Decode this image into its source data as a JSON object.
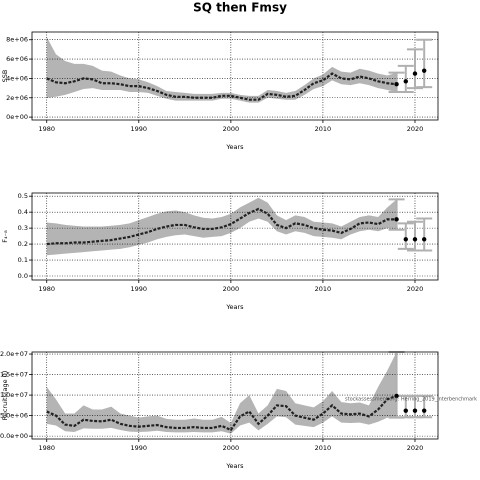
{
  "title": "SQ then Fmsy",
  "chart_data": [
    {
      "type": "line",
      "ylabel": "SSB",
      "xlabel": "Years",
      "color": "#000000",
      "band_color": "#b4b4b4",
      "error_color": "#b0b0b0",
      "grid": true,
      "xlim": [
        1978.4,
        2022.5
      ],
      "xticks": [
        1980,
        1990,
        2000,
        2010,
        2020
      ],
      "ylim": [
        -300000.0,
        8800000.0
      ],
      "yticks": [
        {
          "value": 0,
          "label": "0e+00"
        },
        {
          "value": 2000000.0,
          "label": "2e+06"
        },
        {
          "value": 4000000.0,
          "label": "4e+06"
        },
        {
          "value": 6000000.0,
          "label": "6e+06"
        },
        {
          "value": 8000000.0,
          "label": "8e+06"
        }
      ],
      "x": [
        1980,
        1981,
        1982,
        1983,
        1984,
        1985,
        1986,
        1987,
        1988,
        1989,
        1990,
        1991,
        1992,
        1993,
        1994,
        1995,
        1996,
        1997,
        1998,
        1999,
        2000,
        2001,
        2002,
        2003,
        2004,
        2005,
        2006,
        2007,
        2008,
        2009,
        2010,
        2011,
        2012,
        2013,
        2014,
        2015,
        2016,
        2017,
        2018
      ],
      "values": [
        4000000.0,
        3600000.0,
        3500000.0,
        3700000.0,
        4000000.0,
        3900000.0,
        3500000.0,
        3500000.0,
        3400000.0,
        3200000.0,
        3200000.0,
        3000000.0,
        2700000.0,
        2300000.0,
        2100000.0,
        2100000.0,
        2000000.0,
        2000000.0,
        2000000.0,
        2200000.0,
        2200000.0,
        2000000.0,
        1800000.0,
        1800000.0,
        2400000.0,
        2300000.0,
        2100000.0,
        2200000.0,
        2800000.0,
        3500000.0,
        3800000.0,
        4500000.0,
        4000000.0,
        3900000.0,
        4200000.0,
        4000000.0,
        3700000.0,
        3500000.0,
        3400000.0
      ],
      "upper": [
        8300000.0,
        6500000.0,
        5800000.0,
        5500000.0,
        5500000.0,
        5300000.0,
        4800000.0,
        4700000.0,
        4300000.0,
        4000000.0,
        3900000.0,
        3600000.0,
        3200000.0,
        2700000.0,
        2600000.0,
        2500000.0,
        2400000.0,
        2400000.0,
        2400000.0,
        2500000.0,
        2500000.0,
        2300000.0,
        2200000.0,
        2200000.0,
        2800000.0,
        2700000.0,
        2500000.0,
        2700000.0,
        3300000.0,
        4000000.0,
        4400000.0,
        5200000.0,
        4700000.0,
        4600000.0,
        5000000.0,
        4800000.0,
        4500000.0,
        4300000.0,
        4600000.0
      ],
      "lower": [
        2000000.0,
        2100000.0,
        2300000.0,
        2600000.0,
        2900000.0,
        3000000.0,
        2800000.0,
        2800000.0,
        2800000.0,
        2600000.0,
        2600000.0,
        2500000.0,
        2200000.0,
        1900000.0,
        1700000.0,
        1700000.0,
        1700000.0,
        1700000.0,
        1700000.0,
        1900000.0,
        1900000.0,
        1700000.0,
        1500000.0,
        1500000.0,
        2000000.0,
        1900000.0,
        1800000.0,
        1800000.0,
        2300000.0,
        2900000.0,
        3200000.0,
        3800000.0,
        3400000.0,
        3300000.0,
        3500000.0,
        3300000.0,
        3000000.0,
        2800000.0,
        2600000.0
      ],
      "projection": {
        "x": [
          2018,
          2019,
          2020,
          2021
        ],
        "values": [
          3400000.0,
          3700000.0,
          4500000.0,
          4800000.0
        ],
        "lower": [
          2600000.0,
          2600000.0,
          3000000.0,
          3100000.0
        ],
        "upper": [
          4600000.0,
          5300000.0,
          7000000.0,
          8000000.0
        ]
      }
    },
    {
      "type": "line",
      "ylabel": "F₄₋₈",
      "xlabel": "Years",
      "color": "#000000",
      "band_color": "#b4b4b4",
      "error_color": "#b0b0b0",
      "grid": true,
      "xlim": [
        1978.4,
        2022.5
      ],
      "xticks": [
        1980,
        1990,
        2000,
        2010,
        2020
      ],
      "ylim": [
        -0.025,
        0.52
      ],
      "yticks": [
        {
          "value": 0,
          "label": "0.0"
        },
        0.1,
        0.2,
        0.3,
        0.4,
        0.5
      ],
      "x": [
        1980,
        1981,
        1982,
        1983,
        1984,
        1985,
        1986,
        1987,
        1988,
        1989,
        1990,
        1991,
        1992,
        1993,
        1994,
        1995,
        1996,
        1997,
        1998,
        1999,
        2000,
        2001,
        2002,
        2003,
        2004,
        2005,
        2006,
        2007,
        2008,
        2009,
        2010,
        2011,
        2012,
        2013,
        2014,
        2015,
        2016,
        2017,
        2018
      ],
      "values": [
        0.2,
        0.205,
        0.205,
        0.21,
        0.21,
        0.215,
        0.22,
        0.225,
        0.235,
        0.245,
        0.26,
        0.275,
        0.295,
        0.31,
        0.32,
        0.32,
        0.305,
        0.295,
        0.295,
        0.305,
        0.325,
        0.36,
        0.395,
        0.42,
        0.39,
        0.32,
        0.3,
        0.33,
        0.32,
        0.3,
        0.29,
        0.285,
        0.27,
        0.295,
        0.33,
        0.335,
        0.325,
        0.355,
        0.355
      ],
      "upper": [
        0.335,
        0.33,
        0.32,
        0.315,
        0.31,
        0.31,
        0.31,
        0.315,
        0.32,
        0.33,
        0.35,
        0.37,
        0.39,
        0.405,
        0.41,
        0.4,
        0.38,
        0.365,
        0.36,
        0.37,
        0.39,
        0.43,
        0.46,
        0.49,
        0.46,
        0.38,
        0.35,
        0.38,
        0.37,
        0.34,
        0.335,
        0.33,
        0.31,
        0.34,
        0.37,
        0.38,
        0.37,
        0.43,
        0.48
      ],
      "lower": [
        0.13,
        0.135,
        0.14,
        0.145,
        0.15,
        0.155,
        0.16,
        0.165,
        0.17,
        0.18,
        0.195,
        0.21,
        0.23,
        0.245,
        0.255,
        0.26,
        0.25,
        0.24,
        0.245,
        0.25,
        0.27,
        0.3,
        0.34,
        0.36,
        0.34,
        0.28,
        0.26,
        0.28,
        0.27,
        0.25,
        0.245,
        0.24,
        0.23,
        0.26,
        0.28,
        0.29,
        0.28,
        0.3,
        0.29
      ],
      "projection": {
        "x": [
          2018,
          2019,
          2020,
          2021
        ],
        "values": [
          0.355,
          0.23,
          0.23,
          0.23
        ],
        "lower": [
          0.29,
          0.17,
          0.16,
          0.16
        ],
        "upper": [
          0.48,
          0.33,
          0.34,
          0.36
        ]
      }
    },
    {
      "type": "line",
      "ylabel": "Recruits(age 0)",
      "xlabel": "Years",
      "color": "#000000",
      "band_color": "#b4b4b4",
      "error_color": "#b0b0b0",
      "grid": true,
      "annotation": "stockassessment.org: Herring_2019_interbenchmark",
      "xlim": [
        1978.4,
        2022.5
      ],
      "xticks": [
        1980,
        1990,
        2000,
        2010,
        2020
      ],
      "ylim": [
        -700000.0,
        20500000.0
      ],
      "yticks": [
        {
          "value": 0,
          "label": "0.0e+00"
        },
        {
          "value": 5000000.0,
          "label": "5.0e+06"
        },
        {
          "value": 10000000.0,
          "label": "1.0e+07"
        },
        {
          "value": 15000000.0,
          "label": "1.5e+07"
        },
        {
          "value": 20000000.0,
          "label": "2.0e+07"
        }
      ],
      "x": [
        1980,
        1981,
        1982,
        1983,
        1984,
        1985,
        1986,
        1987,
        1988,
        1989,
        1990,
        1991,
        1992,
        1993,
        1994,
        1995,
        1996,
        1997,
        1998,
        1999,
        2000,
        2001,
        2002,
        2003,
        2004,
        2005,
        2006,
        2007,
        2008,
        2009,
        2010,
        2011,
        2012,
        2013,
        2014,
        2015,
        2016,
        2017,
        2018
      ],
      "values": [
        6000000.0,
        5000000.0,
        2800000.0,
        2500000.0,
        4000000.0,
        3700000.0,
        3600000.0,
        4000000.0,
        3000000.0,
        2500000.0,
        2300000.0,
        2500000.0,
        2700000.0,
        2200000.0,
        2000000.0,
        2000000.0,
        2200000.0,
        2000000.0,
        2000000.0,
        2500000.0,
        1500000.0,
        4800000.0,
        6000000.0,
        3000000.0,
        5000000.0,
        7500000.0,
        7300000.0,
        5000000.0,
        4500000.0,
        4000000.0,
        5500000.0,
        7500000.0,
        5500000.0,
        5300000.0,
        5500000.0,
        4800000.0,
        6500000.0,
        9000000.0,
        9800000.0
      ],
      "upper": [
        12000000.0,
        9000000.0,
        5500000.0,
        5500000.0,
        7500000.0,
        6500000.0,
        6500000.0,
        7200000.0,
        5500000.0,
        5000000.0,
        4500000.0,
        4800000.0,
        5000000.0,
        4200000.0,
        4000000.0,
        4000000.0,
        4300000.0,
        4000000.0,
        4000000.0,
        4700000.0,
        3200000.0,
        8000000.0,
        10000000.0,
        5500000.0,
        7500000.0,
        11500000.0,
        11000000.0,
        8000000.0,
        7500000.0,
        7000000.0,
        8500000.0,
        11000000.0,
        8300000.0,
        8000000.0,
        8200000.0,
        7500000.0,
        12000000.0,
        16000000.0,
        20500000.0
      ],
      "lower": [
        3000000.0,
        2600000.0,
        1200000.0,
        1000000.0,
        1900000.0,
        1800000.0,
        1800000.0,
        2000000.0,
        1500000.0,
        1100000.0,
        1000000.0,
        1100000.0,
        1300000.0,
        1000000.0,
        900000.0,
        900000.0,
        1000000.0,
        900000.0,
        900000.0,
        1200000.0,
        600000.0,
        2600000.0,
        3300000.0,
        1400000.0,
        3000000.0,
        4800000.0,
        4600000.0,
        2800000.0,
        2500000.0,
        2200000.0,
        3300000.0,
        4800000.0,
        3300000.0,
        3200000.0,
        3300000.0,
        2800000.0,
        3500000.0,
        4500000.0,
        4500000.0
      ],
      "projection": {
        "x": [
          2018,
          2019,
          2020,
          2021
        ],
        "values": [
          9800000.0,
          6200000.0,
          6200000.0,
          6200000.0
        ],
        "lower": [
          4500000.0,
          4600000.0,
          4600000.0,
          4600000.0
        ],
        "upper": [
          20500000.0,
          9800000.0,
          9800000.0,
          9800000.0
        ]
      }
    }
  ]
}
